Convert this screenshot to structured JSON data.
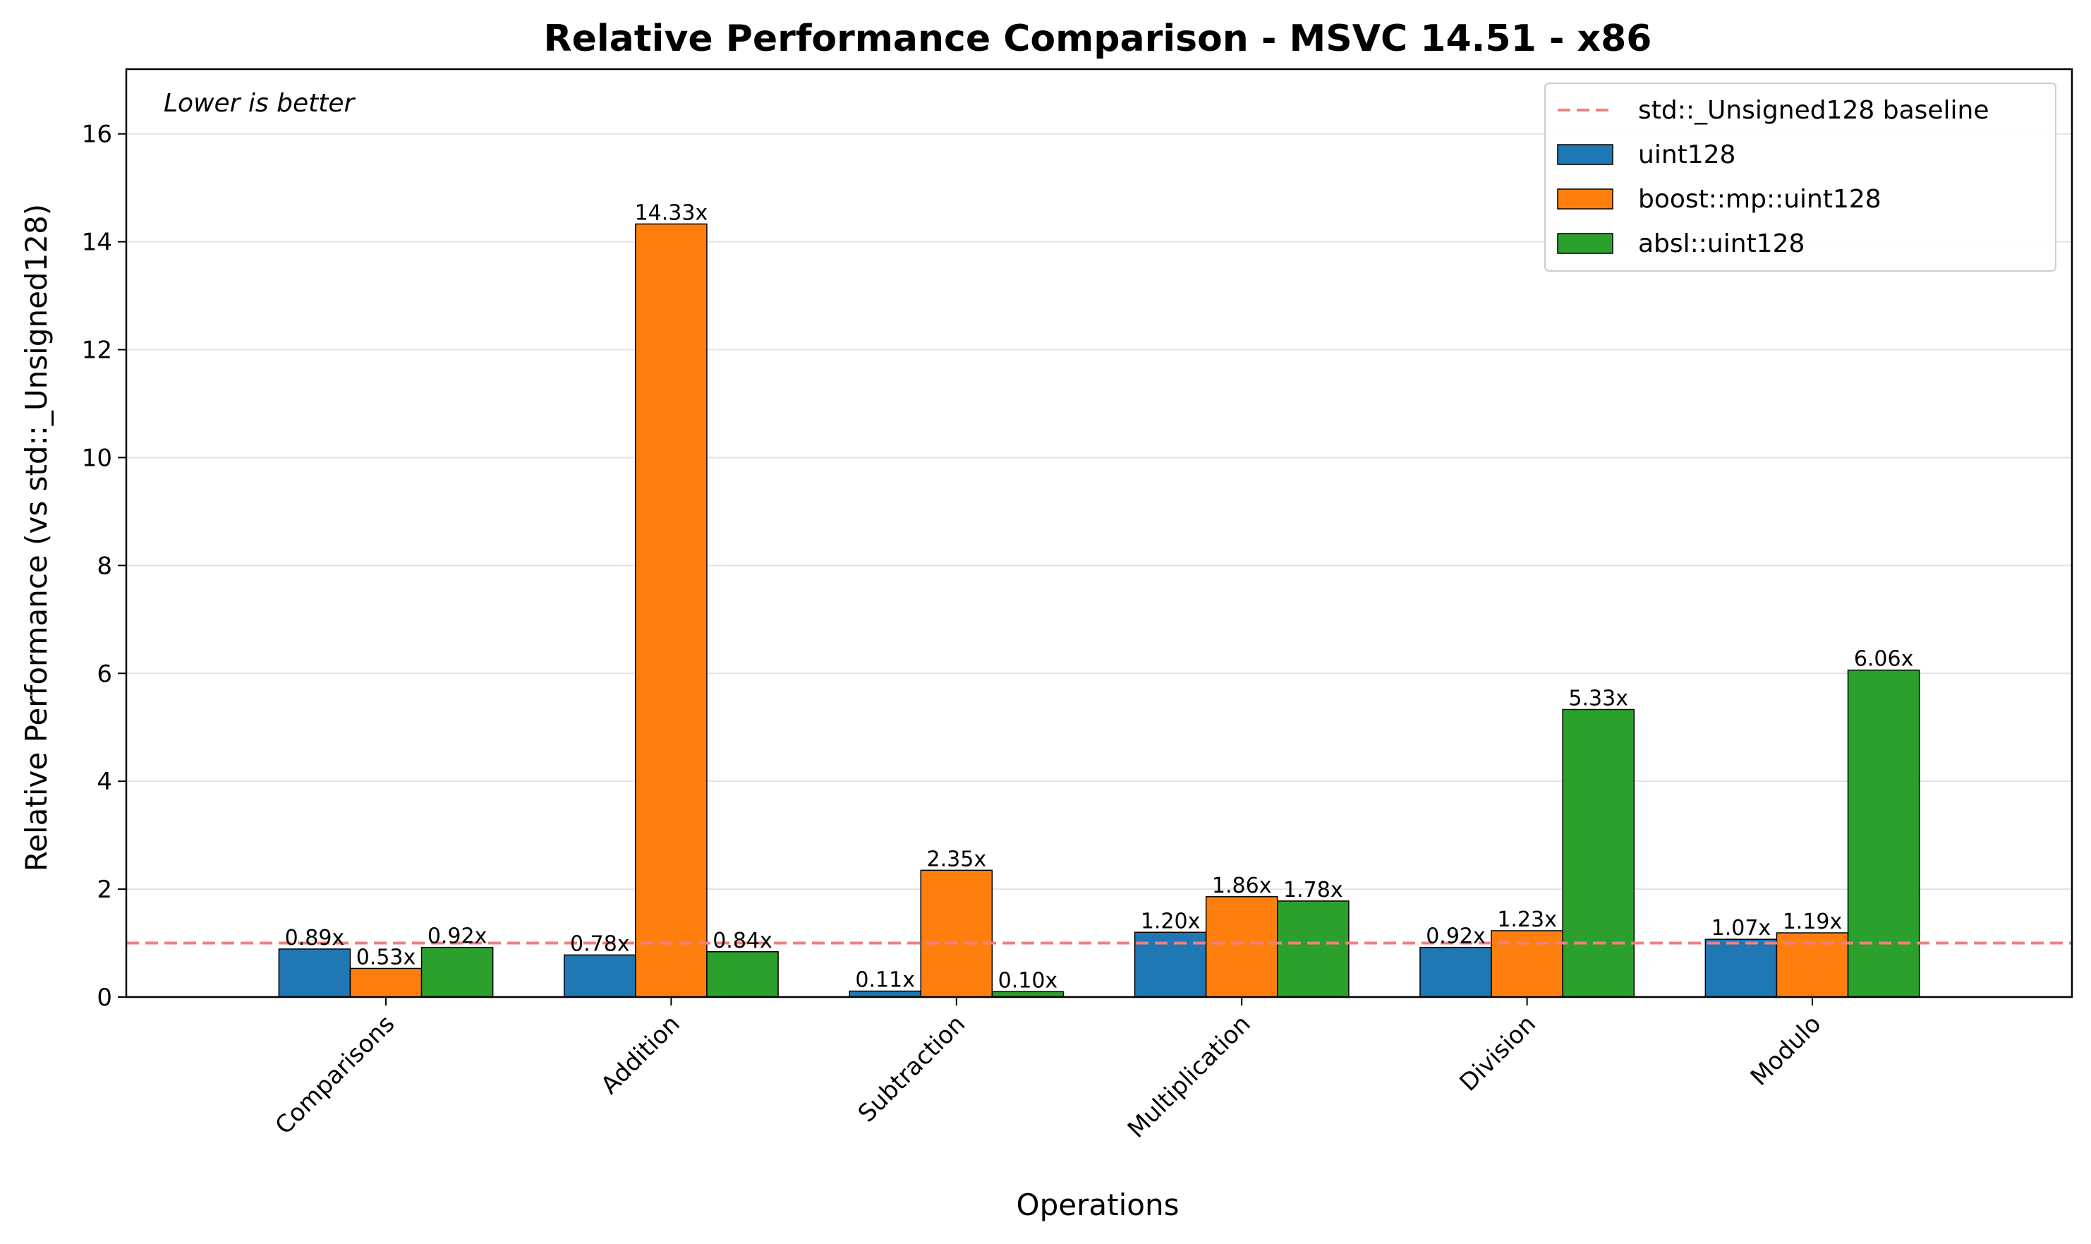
{
  "chart_data": {
    "type": "bar",
    "title": "Relative Performance Comparison - MSVC 14.51 - x86",
    "xlabel": "Operations",
    "ylabel": "Relative Performance (vs std::_Unsigned128)",
    "annotation": "Lower is better",
    "categories": [
      "Comparisons",
      "Addition",
      "Subtraction",
      "Multiplication",
      "Division",
      "Modulo"
    ],
    "series": [
      {
        "name": "uint128",
        "color": "#1f77b4",
        "values": [
          0.89,
          0.78,
          0.11,
          1.2,
          0.92,
          1.07
        ],
        "labels": [
          "0.89x",
          "0.78x",
          "0.11x",
          "1.20x",
          "0.92x",
          "1.07x"
        ]
      },
      {
        "name": "boost::mp::uint128",
        "color": "#ff7f0e",
        "values": [
          0.53,
          14.33,
          2.35,
          1.86,
          1.23,
          1.19
        ],
        "labels": [
          "0.53x",
          "14.33x",
          "2.35x",
          "1.86x",
          "1.23x",
          "1.19x"
        ]
      },
      {
        "name": "absl::uint128",
        "color": "#2ca02c",
        "values": [
          0.92,
          0.84,
          0.1,
          1.78,
          5.33,
          6.06
        ],
        "labels": [
          "0.92x",
          "0.84x",
          "0.10x",
          "1.78x",
          "5.33x",
          "6.06x"
        ]
      }
    ],
    "baseline": {
      "name": "std::_Unsigned128 baseline",
      "value": 1.0,
      "color": "#f08080",
      "style": "dashed"
    },
    "ylim": [
      0,
      17.2
    ],
    "yticks": [
      0,
      2,
      4,
      6,
      8,
      10,
      12,
      14,
      16
    ],
    "grid": "y",
    "legend_position": "top-right"
  }
}
